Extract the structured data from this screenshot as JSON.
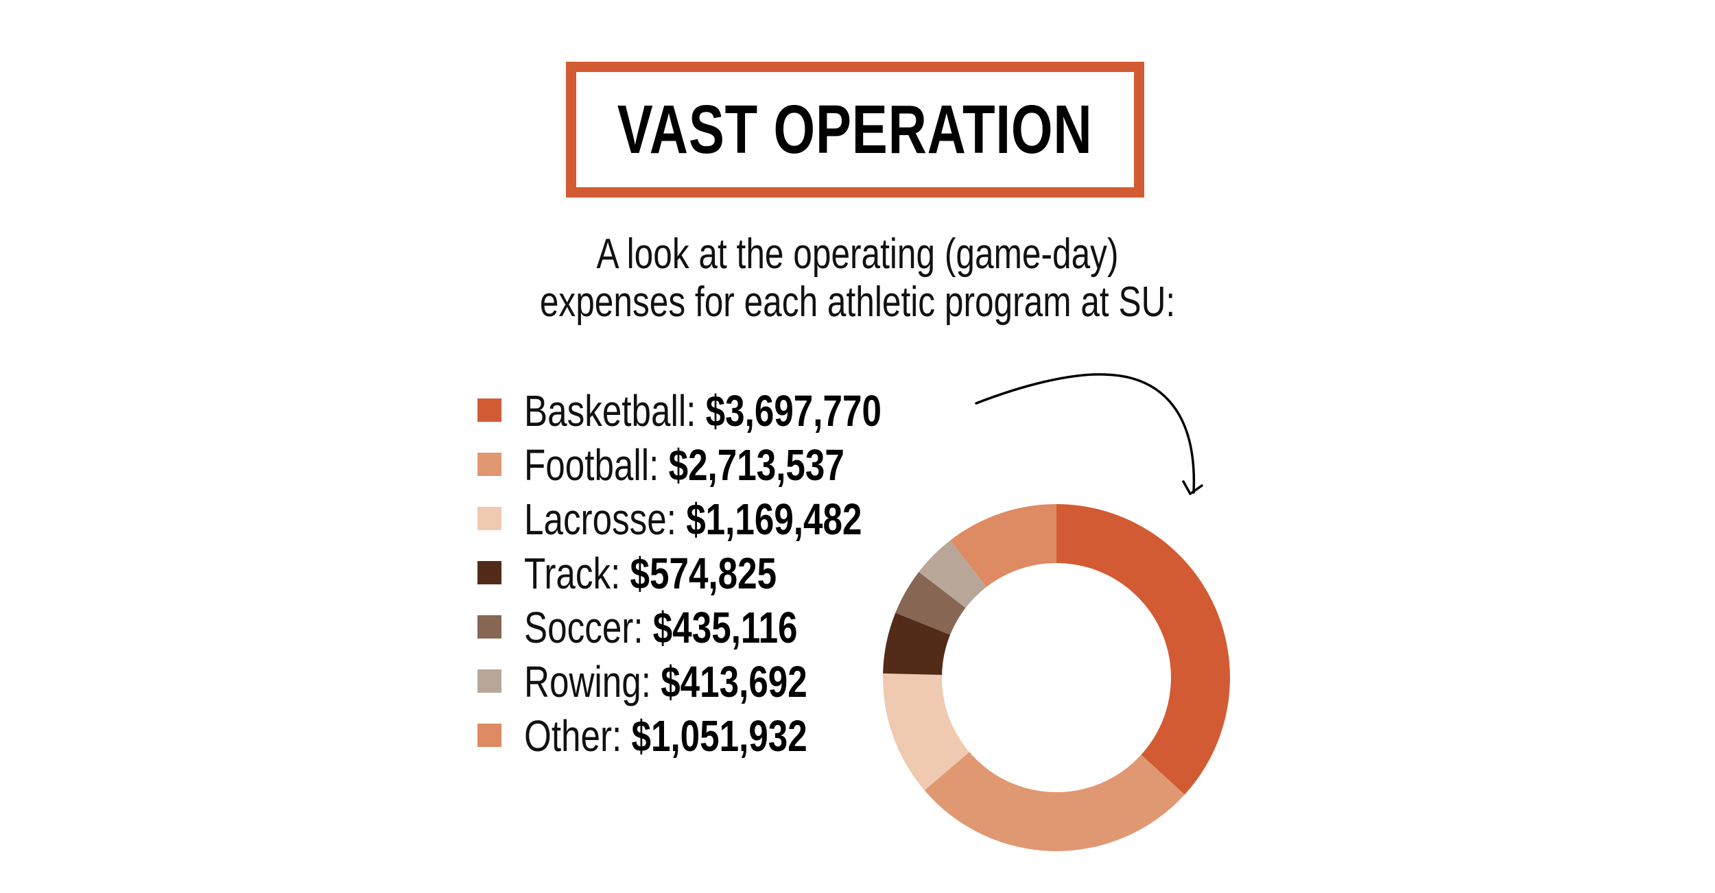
{
  "title": "VAST OPERATION",
  "subtitle": {
    "line1": "A look at the operating (game-day)",
    "line2": "expenses for each athletic program at SU:"
  },
  "colors": {
    "frame": "#D35B33",
    "basketball": "#D35B33",
    "football": "#E09872",
    "lacrosse": "#EFCAB0",
    "track": "#522C19",
    "soccer": "#876654",
    "rowing": "#B8A698",
    "other": "#DE8A62"
  },
  "legend": [
    {
      "label": "Basketball:",
      "value": "$3,697,770",
      "color": "#D35B33"
    },
    {
      "label": "Football:",
      "value": "$2,713,537",
      "color": "#E09872"
    },
    {
      "label": "Lacrosse:",
      "value": "$1,169,482",
      "color": "#EFCAB0"
    },
    {
      "label": "Track:",
      "value": "$574,825",
      "color": "#522C19"
    },
    {
      "label": "Soccer:",
      "value": "$435,116",
      "color": "#876654"
    },
    {
      "label": "Rowing:",
      "value": "$413,692",
      "color": "#B8A698"
    },
    {
      "label": "Other:",
      "value": "$1,051,932",
      "color": "#DE8A62"
    }
  ],
  "chart_data": {
    "type": "pie",
    "variant": "donut",
    "title": "VAST OPERATION",
    "subtitle": "A look at the operating (game-day) expenses for each athletic program at SU:",
    "categories": [
      "Basketball",
      "Football",
      "Lacrosse",
      "Track",
      "Soccer",
      "Rowing",
      "Other"
    ],
    "values": [
      3697770,
      2713537,
      1169482,
      574825,
      435116,
      413692,
      1051932
    ],
    "colors": [
      "#D35B33",
      "#E09872",
      "#EFCAB0",
      "#522C19",
      "#876654",
      "#B8A698",
      "#DE8A62"
    ],
    "start_angle": "12 o'clock",
    "direction": "clockwise",
    "legend_position": "left",
    "unit": "USD"
  }
}
